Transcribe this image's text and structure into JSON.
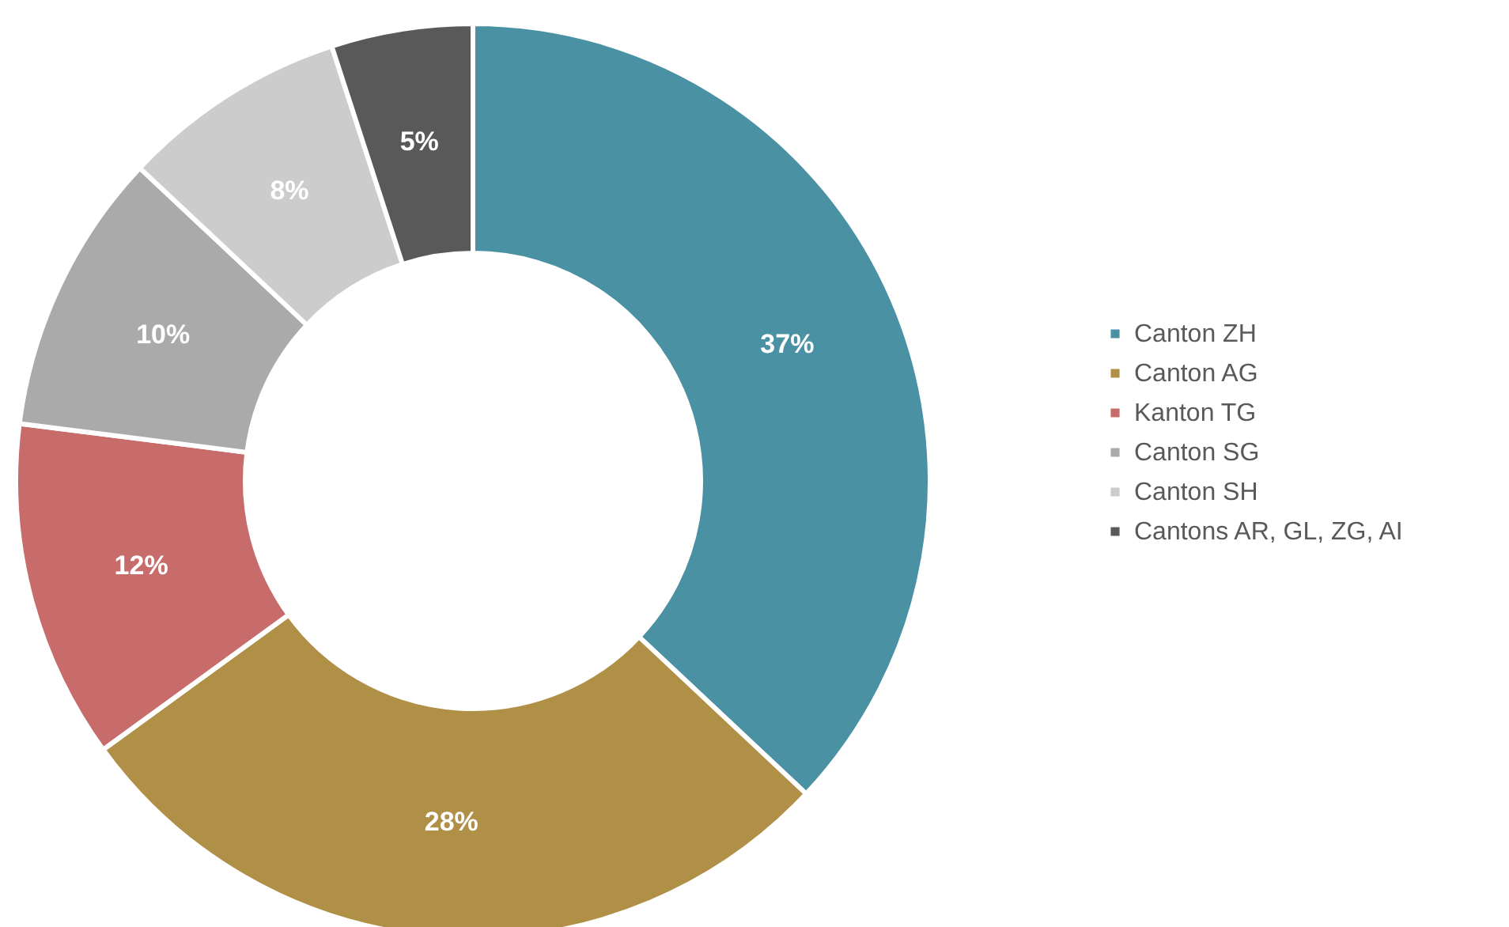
{
  "chart_data": {
    "type": "donut",
    "categories": [
      "Canton ZH",
      "Canton AG",
      "Kanton TG",
      "Canton SG",
      "Canton SH",
      "Cantons AR, GL, ZG, AI"
    ],
    "values": [
      37,
      28,
      12,
      10,
      8,
      5
    ],
    "colors": [
      "#4a91a4",
      "#b08f47",
      "#c86b6b",
      "#aaaaaa",
      "#cccccc",
      "#595959"
    ],
    "value_labels": [
      "37%",
      "28%",
      "12%",
      "10%",
      "8%",
      "5%"
    ],
    "legend": "right"
  }
}
